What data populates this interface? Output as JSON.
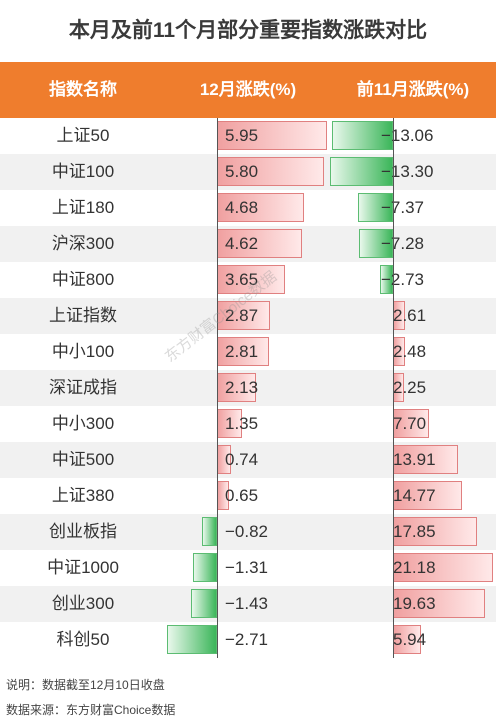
{
  "title": "本月及前11个月部分重要指数涨跌对比",
  "headers": {
    "name": "指数名称",
    "dec": "12月涨跌(%)",
    "ytd": "前11月涨跌(%)"
  },
  "chart_data": {
    "type": "table",
    "columns": [
      "指数名称",
      "12月涨跌(%)",
      "前11月涨跌(%)"
    ],
    "rows": [
      {
        "name": "上证50",
        "dec": 5.95,
        "ytd": -13.06
      },
      {
        "name": "中证100",
        "dec": 5.8,
        "ytd": -13.3
      },
      {
        "name": "上证180",
        "dec": 4.68,
        "ytd": -7.37
      },
      {
        "name": "沪深300",
        "dec": 4.62,
        "ytd": -7.28
      },
      {
        "name": "中证800",
        "dec": 3.65,
        "ytd": -2.73
      },
      {
        "name": "上证指数",
        "dec": 2.87,
        "ytd": 2.61
      },
      {
        "name": "中小100",
        "dec": 2.81,
        "ytd": 2.48
      },
      {
        "name": "深证成指",
        "dec": 2.13,
        "ytd": 2.25
      },
      {
        "name": "中小300",
        "dec": 1.35,
        "ytd": 7.7
      },
      {
        "name": "中证500",
        "dec": 0.74,
        "ytd": 13.91
      },
      {
        "name": "上证380",
        "dec": 0.65,
        "ytd": 14.77
      },
      {
        "name": "创业板指",
        "dec": -0.82,
        "ytd": 17.85
      },
      {
        "name": "中证1000",
        "dec": -1.31,
        "ytd": 21.18
      },
      {
        "name": "创业300",
        "dec": -1.43,
        "ytd": 19.63
      },
      {
        "name": "科创50",
        "dec": -2.71,
        "ytd": 5.94
      }
    ],
    "colors": {
      "positive": "#f0a0a0",
      "negative": "#3cb65a",
      "header": "#ef7d2d"
    }
  },
  "notes": {
    "explain": "说明：数据截至12月10日收盘",
    "source": "数据来源：东方财富Choice数据"
  },
  "watermark": "东方财富Choice数据"
}
